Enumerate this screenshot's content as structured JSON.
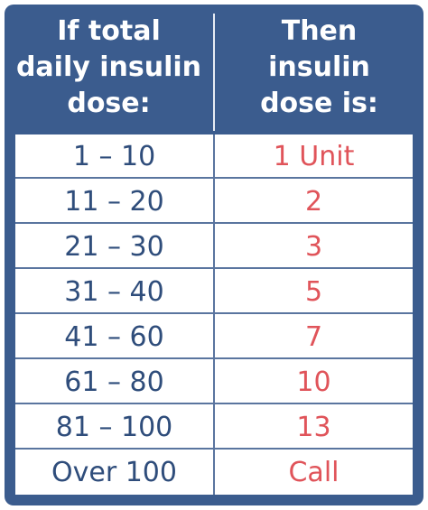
{
  "header": {
    "left_lines": [
      "If total",
      "daily insulin",
      "dose:"
    ],
    "right_lines": [
      "Then",
      "insulin",
      "dose is:"
    ]
  },
  "rows": [
    {
      "range": "1 – 10",
      "dose": "1 Unit"
    },
    {
      "range": "11 – 20",
      "dose": "2"
    },
    {
      "range": "21 – 30",
      "dose": "3"
    },
    {
      "range": "31 – 40",
      "dose": "5"
    },
    {
      "range": "41 – 60",
      "dose": "7"
    },
    {
      "range": "61 – 80",
      "dose": "10"
    },
    {
      "range": "81 – 100",
      "dose": "13"
    },
    {
      "range": "Over 100",
      "dose": "Call"
    }
  ],
  "colors": {
    "frame": "#3b5c8e",
    "header_text": "#ffffff",
    "range_text": "#2f4d7b",
    "dose_text": "#e0545a",
    "grid_line": "#5a759f"
  }
}
